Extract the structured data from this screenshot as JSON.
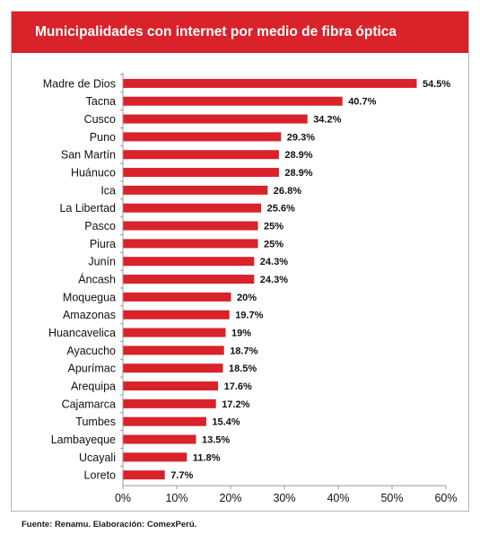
{
  "header": {
    "title": "Municipalidades  con internet por medio de fibra óptica"
  },
  "footer": {
    "source": "Fuente:  Renamu.  Elaboración:  ComexPerú."
  },
  "colors": {
    "bar": "#d9222a",
    "title_bg": "#d9222a",
    "axis": "#999999",
    "text": "#111111"
  },
  "chart_data": {
    "type": "bar",
    "orientation": "horizontal",
    "title": "Municipalidades  con internet por medio de fibra óptica",
    "xlabel": "",
    "ylabel": "",
    "xlim": [
      0,
      60
    ],
    "x_ticks": [
      "0%",
      "10%",
      "20%",
      "30%",
      "40%",
      "50%",
      "60%"
    ],
    "x_tick_values": [
      0,
      10,
      20,
      30,
      40,
      50,
      60
    ],
    "grid": false,
    "categories": [
      "Madre de Dios",
      "Tacna",
      "Cusco",
      "Puno",
      "San Martín",
      "Huánuco",
      "Ica",
      "La Libertad",
      "Pasco",
      "Piura",
      "Junín",
      "Áncash",
      "Moquegua",
      "Amazonas",
      "Huancavelica",
      "Ayacucho",
      "Apurímac",
      "Arequipa",
      "Cajamarca",
      "Tumbes",
      "Lambayeque",
      "Ucayali",
      "Loreto"
    ],
    "values": [
      54.5,
      40.7,
      34.2,
      29.3,
      28.9,
      28.9,
      26.8,
      25.6,
      25,
      25,
      24.3,
      24.3,
      20,
      19.7,
      19,
      18.7,
      18.5,
      17.6,
      17.2,
      15.4,
      13.5,
      11.8,
      7.7
    ],
    "value_labels": [
      "54.5%",
      "40.7%",
      "34.2%",
      "29.3%",
      "28.9%",
      "28.9%",
      "26.8%",
      "25.6%",
      "25%",
      "25%",
      "24.3%",
      "24.3%",
      "20%",
      "19.7%",
      "19%",
      "18.7%",
      "18.5%",
      "17.6%",
      "17.2%",
      "15.4%",
      "13.5%",
      "11.8%",
      "7.7%"
    ]
  }
}
